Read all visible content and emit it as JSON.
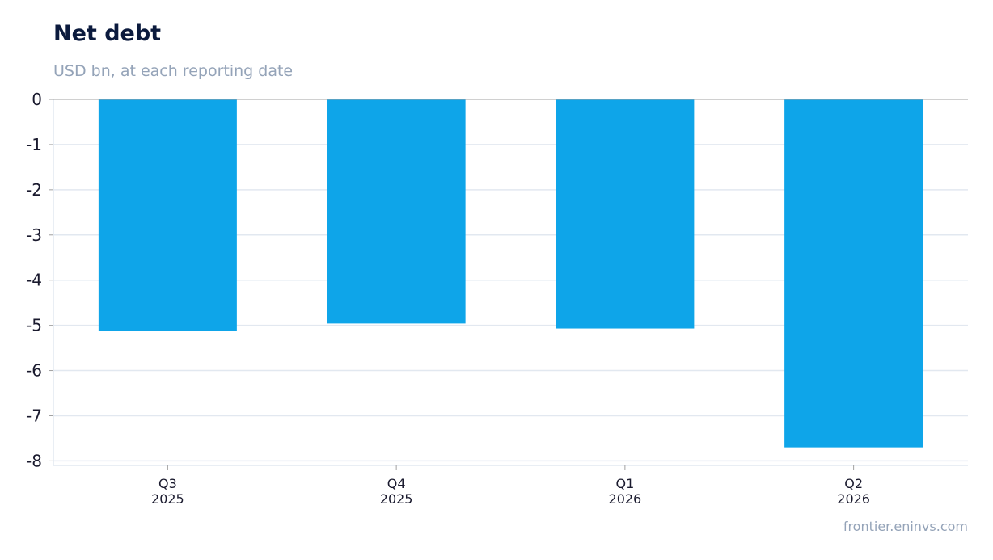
{
  "header": {
    "title": "Net debt",
    "subtitle": "USD bn, at each reporting date"
  },
  "footer": {
    "source": "frontier.eninvs.com"
  },
  "colors": {
    "bar": "#0ea5e9",
    "grid": "#e2e8f0",
    "axis": "#a0a0a0",
    "title": "#0b1a3d",
    "muted": "#94a3b8"
  },
  "chart_data": {
    "type": "bar",
    "categories": [
      [
        "Q3",
        "2025"
      ],
      [
        "Q4",
        "2025"
      ],
      [
        "Q1",
        "2026"
      ],
      [
        "Q2",
        "2026"
      ]
    ],
    "values": [
      -5.12,
      -4.96,
      -5.07,
      -7.7
    ],
    "title": "Net debt",
    "subtitle": "USD bn, at each reporting date",
    "xlabel": "",
    "ylabel": "",
    "ylim": [
      -8.1,
      0
    ],
    "yticks": [
      0,
      -1,
      -2,
      -3,
      -4,
      -5,
      -6,
      -7,
      -8
    ],
    "grid": true,
    "legend": "none"
  }
}
